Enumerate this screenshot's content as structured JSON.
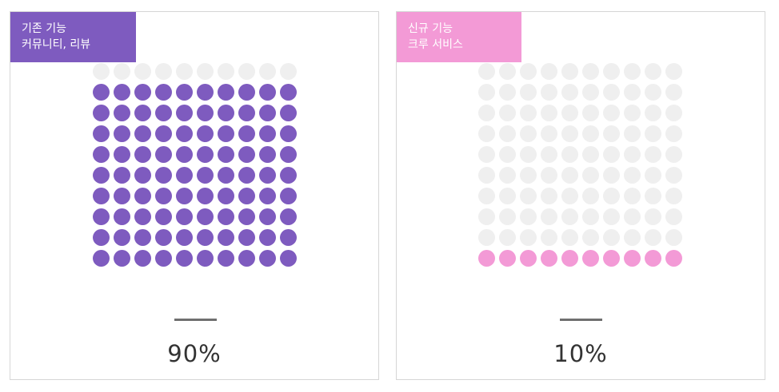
{
  "colors": {
    "existing": "#7e5bbf",
    "new": "#f39ad6",
    "empty": "#efefef"
  },
  "panels": [
    {
      "tag_line1": "기존 기능",
      "tag_line2": "커뮤니티, 리뷰",
      "percent_label": "90%"
    },
    {
      "tag_line1": "신규 기능",
      "tag_line2": "크루 서비스",
      "percent_label": "10%"
    }
  ],
  "chart_data": {
    "type": "waffle",
    "grid": {
      "rows": 10,
      "cols": 10
    },
    "series": [
      {
        "name": "기존 기능 커뮤니티, 리뷰",
        "value": 90,
        "unit": "%",
        "color": "#7e5bbf",
        "fill_from": "bottom"
      },
      {
        "name": "신규 기능 크루 서비스",
        "value": 10,
        "unit": "%",
        "color": "#f39ad6",
        "fill_from": "bottom"
      }
    ]
  }
}
